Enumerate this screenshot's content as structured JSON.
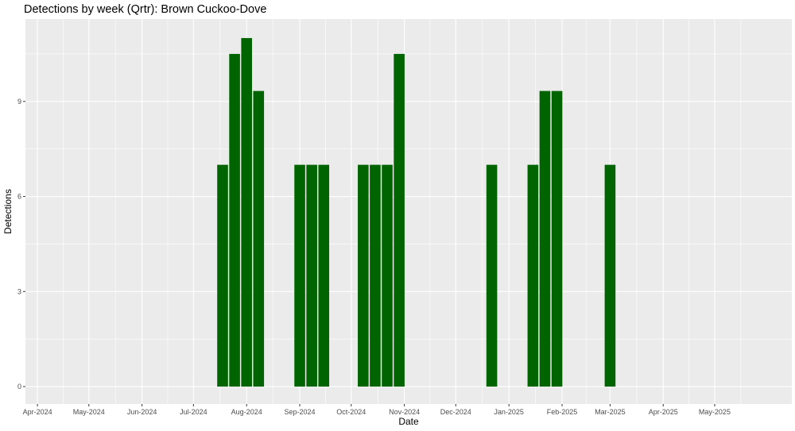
{
  "chart_data": {
    "type": "bar",
    "title": "Detections by week (Qrtr): Brown Cuckoo-Dove",
    "xlabel": "Date",
    "ylabel": "Detections",
    "x_axis": {
      "type": "date",
      "range": [
        "2024-03-25",
        "2025-06-15"
      ],
      "ticks": [
        {
          "date": "2024-04-01",
          "label": "Apr-2024"
        },
        {
          "date": "2024-05-01",
          "label": "May-2024"
        },
        {
          "date": "2024-06-01",
          "label": "Jun-2024"
        },
        {
          "date": "2024-07-01",
          "label": "Jul-2024"
        },
        {
          "date": "2024-08-01",
          "label": "Aug-2024"
        },
        {
          "date": "2024-09-01",
          "label": "Sep-2024"
        },
        {
          "date": "2024-10-01",
          "label": "Oct-2024"
        },
        {
          "date": "2024-11-01",
          "label": "Nov-2024"
        },
        {
          "date": "2024-12-01",
          "label": "Dec-2024"
        },
        {
          "date": "2025-01-01",
          "label": "Jan-2025"
        },
        {
          "date": "2025-02-01",
          "label": "Feb-2025"
        },
        {
          "date": "2025-03-01",
          "label": "Mar-2025"
        },
        {
          "date": "2025-04-01",
          "label": "Apr-2025"
        },
        {
          "date": "2025-05-01",
          "label": "May-2025"
        }
      ]
    },
    "y_axis": {
      "range": [
        -0.55,
        11.6
      ],
      "ticks": [
        0,
        3,
        6,
        9
      ]
    },
    "bar_width_days": 6.3,
    "bar_baseline": -0.0,
    "bars": [
      {
        "date": "2024-07-18",
        "value": 7
      },
      {
        "date": "2024-07-25",
        "value": 10.5
      },
      {
        "date": "2024-08-01",
        "value": 11
      },
      {
        "date": "2024-08-08",
        "value": 9.33
      },
      {
        "date": "2024-09-01",
        "value": 7
      },
      {
        "date": "2024-09-08",
        "value": 7
      },
      {
        "date": "2024-09-15",
        "value": 7
      },
      {
        "date": "2024-10-08",
        "value": 7
      },
      {
        "date": "2024-10-15",
        "value": 7
      },
      {
        "date": "2024-10-22",
        "value": 7
      },
      {
        "date": "2024-10-29",
        "value": 10.5
      },
      {
        "date": "2024-12-22",
        "value": 7
      },
      {
        "date": "2025-01-15",
        "value": 7
      },
      {
        "date": "2025-01-22",
        "value": 9.33
      },
      {
        "date": "2025-01-29",
        "value": 9.33
      },
      {
        "date": "2025-03-01",
        "value": 7
      }
    ],
    "bar_color": "#006400",
    "panel_background": "#ebebeb",
    "grid": true,
    "legend": "none"
  }
}
